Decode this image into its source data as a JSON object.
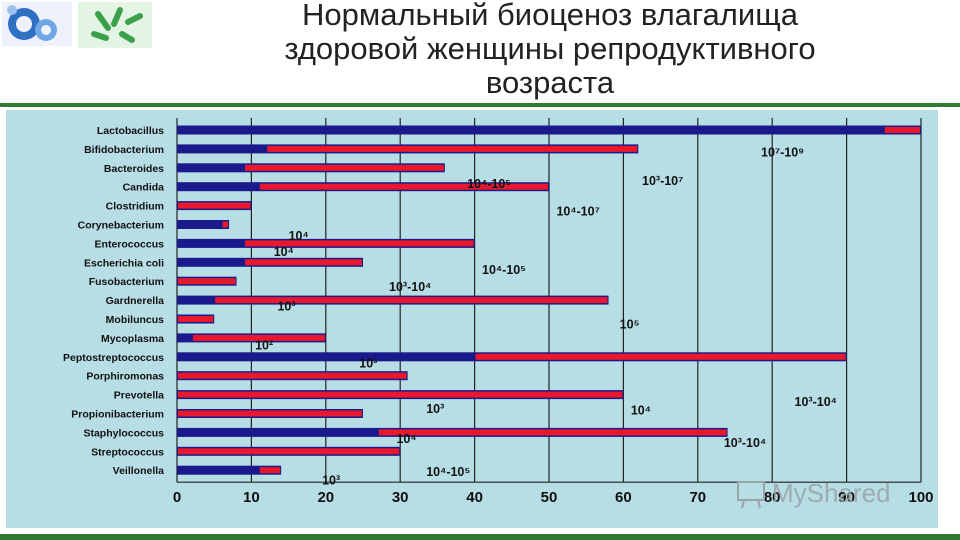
{
  "slide": {
    "title_lines": [
      "Нормальный биоценоз влагалища",
      "здоровой женщины репродуктивного",
      "возраста"
    ]
  },
  "colors": {
    "background": "#b7dde5",
    "series_blue": "#1a1a8c",
    "series_red": "#e8192c",
    "accent": "#2e7d32"
  },
  "icons": {
    "logo_left": "molecule-logo-icon",
    "logo_right": "bacteria-logo-icon",
    "watermark": "presentation-board-icon"
  },
  "watermark": "MyShared",
  "chart_data": {
    "type": "bar",
    "orientation": "horizontal",
    "title": "",
    "xlabel": "",
    "ylabel": "",
    "xlim": [
      0,
      100
    ],
    "x_ticks": [
      0,
      10,
      20,
      30,
      40,
      50,
      60,
      70,
      80,
      90,
      100
    ],
    "grid": "vertical",
    "legend": "none",
    "categories": [
      "Lactobacillus",
      "Bifidobacterium",
      "Bacteroides",
      "Candida",
      "Clostridium",
      "Corynebacterium",
      "Enterococcus",
      "Escherichia coli",
      "Fusobacterium",
      "Gardnerella",
      "Mobiluncus",
      "Mycoplasma",
      "Peptostreptococcus",
      "Porphiromonas",
      "Prevotella",
      "Propionibacterium",
      "Staphylococcus",
      "Streptococcus",
      "Veillonella"
    ],
    "series": [
      {
        "color": "#1a1a8c",
        "values": [
          100,
          62,
          36,
          50,
          10,
          7,
          40,
          25,
          8,
          58,
          5,
          20,
          90,
          31,
          60,
          25,
          74,
          30,
          14
        ]
      },
      {
        "color": "#e8192c",
        "range_start": [
          95,
          12,
          9,
          11,
          0,
          6,
          9,
          9,
          0,
          5,
          0,
          2,
          40,
          0,
          0,
          0,
          27,
          0,
          11
        ]
      }
    ],
    "annotations": [
      {
        "text": "10⁷-10⁹",
        "x": 78.5,
        "y": 1.2
      },
      {
        "text": "10³-10⁷",
        "x": 62.5,
        "y": 2.7
      },
      {
        "text": "10⁴-10⁵",
        "x": 39,
        "y": 2.85
      },
      {
        "text": "10⁴-10⁷",
        "x": 51,
        "y": 4.3
      },
      {
        "text": "10⁴",
        "x": 15,
        "y": 5.6
      },
      {
        "text": "10⁴",
        "x": 13,
        "y": 6.45
      },
      {
        "text": "10⁴-10⁵",
        "x": 41,
        "y": 7.4
      },
      {
        "text": "10³-10⁴",
        "x": 28.5,
        "y": 8.3
      },
      {
        "text": "10³",
        "x": 13.5,
        "y": 9.35
      },
      {
        "text": "10⁵",
        "x": 59.5,
        "y": 10.3
      },
      {
        "text": "10²",
        "x": 10.5,
        "y": 11.4
      },
      {
        "text": "10³",
        "x": 24.5,
        "y": 12.35
      },
      {
        "text": "10³-10⁴",
        "x": 83,
        "y": 14.4
      },
      {
        "text": "10³",
        "x": 33.5,
        "y": 14.75
      },
      {
        "text": "10⁴",
        "x": 61,
        "y": 14.85
      },
      {
        "text": "10⁴",
        "x": 29.5,
        "y": 16.35
      },
      {
        "text": "10³-10⁴",
        "x": 73.5,
        "y": 16.55
      },
      {
        "text": "10⁴-10⁵",
        "x": 33.5,
        "y": 18.1
      },
      {
        "text": "10³",
        "x": 19.5,
        "y": 18.55
      }
    ]
  }
}
